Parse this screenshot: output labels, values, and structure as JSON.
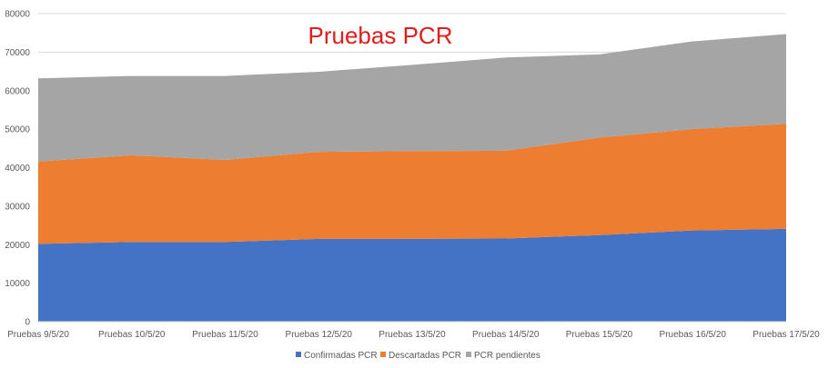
{
  "chart_data": {
    "type": "area",
    "stacked": true,
    "title": "Pruebas PCR",
    "xlabel": "",
    "ylabel": "",
    "categories": [
      "Pruebas 9/5/20",
      "Pruebas 10/5/20",
      "Pruebas 11/5/20",
      "Pruebas 12/5/20",
      "Pruebas 13/5/20",
      "Pruebas 14/5/20",
      "Pruebas 15/5/20",
      "Pruebas 16/5/20",
      "Pruebas 17/5/20"
    ],
    "series": [
      {
        "name": "Confirmadas PCR",
        "color": "#4472c4",
        "values": [
          20200,
          20700,
          20700,
          21500,
          21500,
          21600,
          22500,
          23700,
          24100
        ]
      },
      {
        "name": "Descartadas PCR",
        "color": "#ed7d31",
        "values": [
          21400,
          22500,
          21300,
          22600,
          22800,
          22800,
          25300,
          26300,
          27300
        ]
      },
      {
        "name": "PCR pendientes",
        "color": "#a5a5a5",
        "values": [
          21600,
          20600,
          21800,
          20800,
          22400,
          24200,
          21600,
          22800,
          23300
        ]
      }
    ],
    "ylim": [
      0,
      80000
    ],
    "yticks": [
      "0",
      "10000",
      "20000",
      "30000",
      "40000",
      "50000",
      "60000",
      "70000",
      "80000"
    ],
    "grid": true,
    "legend_position": "bottom"
  }
}
